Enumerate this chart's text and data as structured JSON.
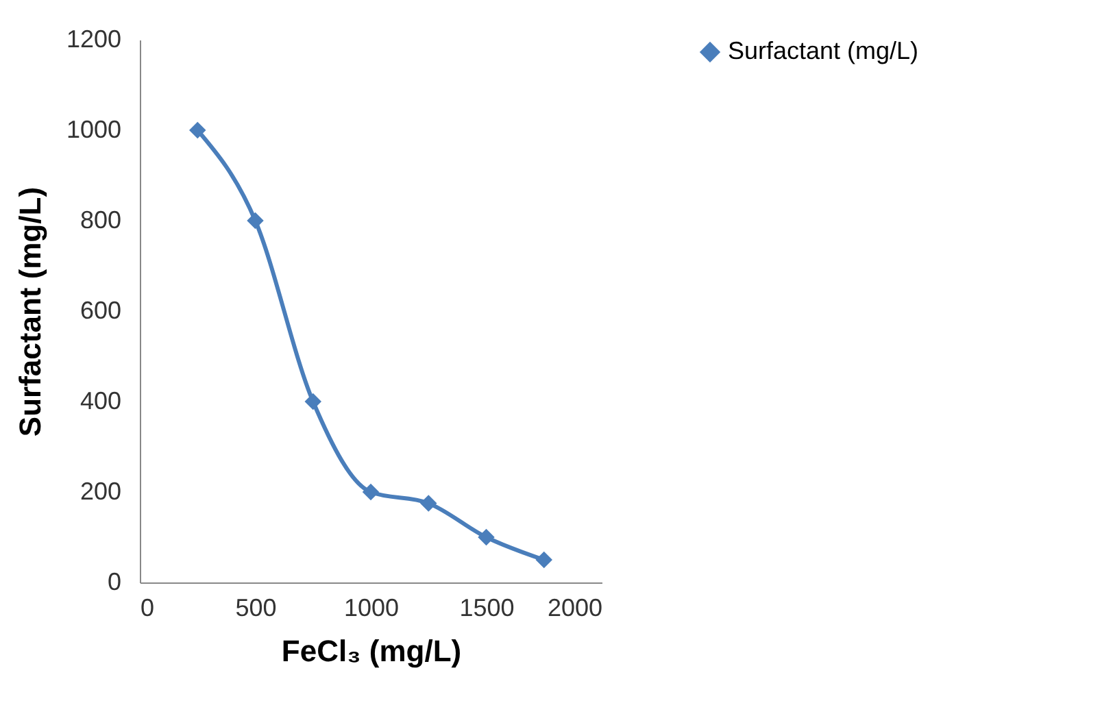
{
  "chart_data": {
    "type": "line",
    "xlabel": "FeCl₃ (mg/L)",
    "ylabel": "Surfactant (mg/L)",
    "x": [
      250,
      500,
      750,
      1000,
      1250,
      1500,
      1750
    ],
    "series": [
      {
        "name": "Surfactant (mg/L)",
        "color": "#4a7ebb",
        "values": [
          1000,
          800,
          400,
          200,
          175,
          100,
          50
        ]
      }
    ],
    "xlim": [
      0,
      2000
    ],
    "xticks": [
      0,
      500,
      1000,
      1500,
      2000
    ],
    "ylim": [
      0,
      1200
    ],
    "yticks": [
      0,
      200,
      400,
      600,
      800,
      1000,
      1200
    ],
    "grid": false,
    "legend": "right",
    "marker": "diamond",
    "line_style": "solid"
  }
}
